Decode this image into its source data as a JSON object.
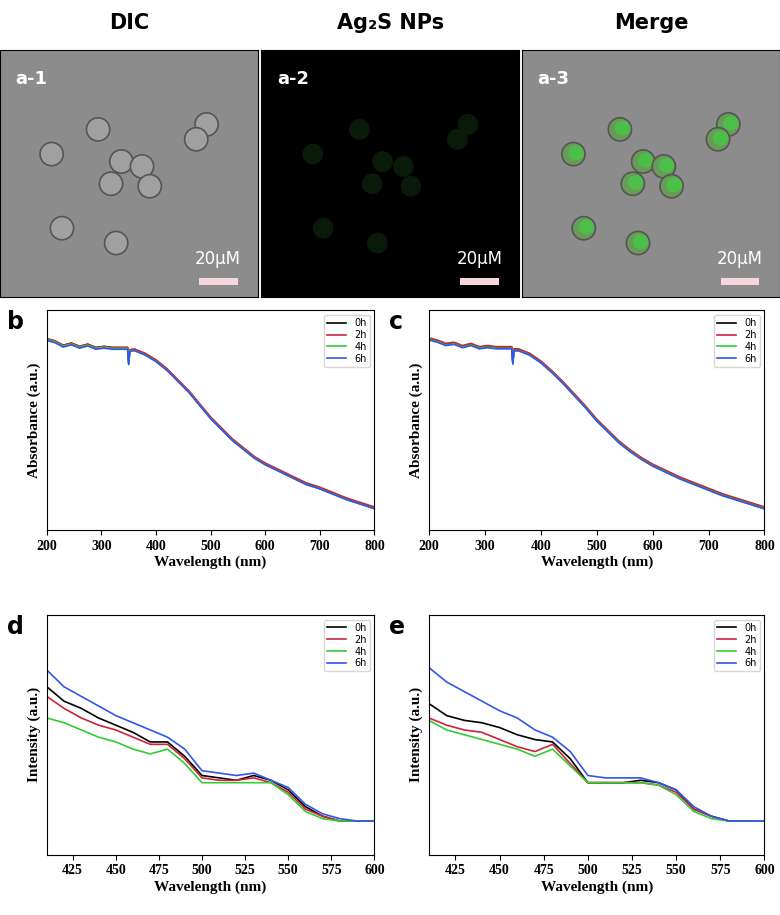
{
  "micrographs": [
    {
      "column_title": "DIC",
      "label": "a-1",
      "scale_bar": "20μM"
    },
    {
      "column_title": "Ag₂S NPs",
      "label": "a-2",
      "scale_bar": "20μM"
    },
    {
      "column_title": "Merge",
      "label": "a-3",
      "scale_bar": "20μM"
    }
  ],
  "chart_data": [
    {
      "type": "line",
      "title": "b",
      "x_label": "Wavelength (nm)",
      "y_label": "Absorbance (a.u.)",
      "x": [
        200,
        215,
        230,
        245,
        260,
        275,
        290,
        305,
        320,
        335,
        348,
        350,
        352,
        360,
        380,
        400,
        420,
        440,
        460,
        480,
        500,
        520,
        540,
        560,
        580,
        600,
        625,
        650,
        675,
        700,
        725,
        750,
        775,
        800
      ],
      "xlim": [
        200,
        800
      ],
      "xticks": [
        200,
        300,
        400,
        500,
        600,
        700,
        800
      ],
      "ylim": [
        0,
        1
      ],
      "yticks": [],
      "tick_labels": "x",
      "legend": "upper right",
      "series": [
        {
          "name": "0h",
          "color": "#000000",
          "values": [
            0.87,
            0.86,
            0.84,
            0.85,
            0.835,
            0.845,
            0.83,
            0.835,
            0.83,
            0.83,
            0.83,
            0.76,
            0.82,
            0.82,
            0.8,
            0.77,
            0.73,
            0.68,
            0.63,
            0.57,
            0.51,
            0.46,
            0.41,
            0.37,
            0.33,
            0.3,
            0.27,
            0.24,
            0.21,
            0.19,
            0.165,
            0.14,
            0.12,
            0.1
          ]
        },
        {
          "name": "2h",
          "color": "#d0213a",
          "values": [
            0.87,
            0.86,
            0.84,
            0.85,
            0.835,
            0.845,
            0.83,
            0.835,
            0.83,
            0.83,
            0.83,
            0.76,
            0.82,
            0.824,
            0.804,
            0.774,
            0.734,
            0.684,
            0.634,
            0.574,
            0.514,
            0.464,
            0.414,
            0.374,
            0.334,
            0.304,
            0.274,
            0.244,
            0.214,
            0.194,
            0.169,
            0.144,
            0.124,
            0.104
          ]
        },
        {
          "name": "4h",
          "color": "#33cc33",
          "values": [
            0.866,
            0.856,
            0.836,
            0.846,
            0.831,
            0.841,
            0.826,
            0.831,
            0.826,
            0.826,
            0.826,
            0.756,
            0.816,
            0.817,
            0.797,
            0.767,
            0.727,
            0.677,
            0.627,
            0.567,
            0.507,
            0.457,
            0.407,
            0.367,
            0.327,
            0.297,
            0.267,
            0.237,
            0.207,
            0.187,
            0.162,
            0.137,
            0.117,
            0.097
          ]
        },
        {
          "name": "6h",
          "color": "#3355ee",
          "values": [
            0.862,
            0.852,
            0.832,
            0.842,
            0.827,
            0.837,
            0.822,
            0.827,
            0.822,
            0.822,
            0.822,
            0.752,
            0.812,
            0.816,
            0.796,
            0.766,
            0.726,
            0.676,
            0.626,
            0.566,
            0.506,
            0.456,
            0.406,
            0.366,
            0.326,
            0.296,
            0.266,
            0.236,
            0.206,
            0.186,
            0.161,
            0.136,
            0.116,
            0.096
          ]
        }
      ]
    },
    {
      "type": "line",
      "title": "c",
      "x_label": "Wavelength (nm)",
      "y_label": "Absorbance (a.u.)",
      "x": [
        200,
        215,
        230,
        245,
        260,
        275,
        290,
        305,
        320,
        335,
        348,
        350,
        352,
        360,
        380,
        400,
        420,
        440,
        460,
        480,
        500,
        520,
        540,
        560,
        580,
        600,
        625,
        650,
        675,
        700,
        725,
        750,
        775,
        800
      ],
      "xlim": [
        200,
        800
      ],
      "xticks": [
        200,
        300,
        400,
        500,
        600,
        700,
        800
      ],
      "ylim": [
        0,
        1
      ],
      "yticks": [],
      "tick_labels": "x",
      "legend": "upper right",
      "series": [
        {
          "name": "0h",
          "color": "#000000",
          "values": [
            0.87,
            0.86,
            0.845,
            0.85,
            0.835,
            0.845,
            0.83,
            0.835,
            0.83,
            0.83,
            0.83,
            0.76,
            0.82,
            0.82,
            0.8,
            0.765,
            0.72,
            0.67,
            0.615,
            0.56,
            0.5,
            0.45,
            0.4,
            0.36,
            0.325,
            0.295,
            0.265,
            0.235,
            0.21,
            0.185,
            0.16,
            0.14,
            0.12,
            0.1
          ]
        },
        {
          "name": "2h",
          "color": "#d0213a",
          "values": [
            0.874,
            0.864,
            0.849,
            0.854,
            0.839,
            0.849,
            0.834,
            0.839,
            0.834,
            0.834,
            0.834,
            0.764,
            0.824,
            0.824,
            0.804,
            0.769,
            0.724,
            0.674,
            0.619,
            0.564,
            0.504,
            0.454,
            0.404,
            0.364,
            0.329,
            0.299,
            0.269,
            0.239,
            0.214,
            0.189,
            0.164,
            0.144,
            0.124,
            0.104
          ]
        },
        {
          "name": "4h",
          "color": "#33cc33",
          "values": [
            0.867,
            0.857,
            0.842,
            0.847,
            0.832,
            0.842,
            0.827,
            0.832,
            0.827,
            0.827,
            0.827,
            0.757,
            0.817,
            0.817,
            0.797,
            0.762,
            0.717,
            0.667,
            0.612,
            0.557,
            0.497,
            0.447,
            0.397,
            0.357,
            0.322,
            0.292,
            0.262,
            0.232,
            0.207,
            0.182,
            0.157,
            0.137,
            0.117,
            0.097
          ]
        },
        {
          "name": "6h",
          "color": "#3355ee",
          "values": [
            0.864,
            0.854,
            0.839,
            0.844,
            0.829,
            0.839,
            0.824,
            0.829,
            0.824,
            0.824,
            0.824,
            0.754,
            0.814,
            0.815,
            0.795,
            0.76,
            0.715,
            0.665,
            0.61,
            0.555,
            0.495,
            0.445,
            0.395,
            0.355,
            0.32,
            0.29,
            0.26,
            0.23,
            0.205,
            0.18,
            0.155,
            0.135,
            0.115,
            0.095
          ]
        }
      ]
    },
    {
      "type": "line",
      "title": "d",
      "x_label": "Wavelength (nm)",
      "y_label": "Intensity (a.u.)",
      "x": [
        410,
        420,
        430,
        440,
        450,
        460,
        470,
        480,
        490,
        500,
        510,
        520,
        530,
        540,
        550,
        560,
        570,
        580,
        590,
        600
      ],
      "xlim": [
        410,
        600
      ],
      "xticks": [
        425,
        450,
        475,
        500,
        525,
        550,
        575,
        600
      ],
      "ylim": [
        0,
        1
      ],
      "yticks": [],
      "tick_labels": "x",
      "legend": "upper right",
      "series": [
        {
          "name": "0h",
          "color": "#000000",
          "values": [
            0.7,
            0.64,
            0.61,
            0.57,
            0.54,
            0.51,
            0.47,
            0.47,
            0.41,
            0.33,
            0.32,
            0.31,
            0.33,
            0.31,
            0.27,
            0.2,
            0.16,
            0.14,
            0.14,
            0.14
          ]
        },
        {
          "name": "2h",
          "color": "#d0213a",
          "values": [
            0.66,
            0.61,
            0.57,
            0.54,
            0.52,
            0.49,
            0.46,
            0.46,
            0.4,
            0.32,
            0.31,
            0.31,
            0.32,
            0.3,
            0.26,
            0.19,
            0.16,
            0.14,
            0.14,
            0.14
          ]
        },
        {
          "name": "4h",
          "color": "#33cc33",
          "values": [
            0.57,
            0.55,
            0.52,
            0.49,
            0.47,
            0.44,
            0.42,
            0.44,
            0.38,
            0.3,
            0.3,
            0.3,
            0.3,
            0.3,
            0.25,
            0.18,
            0.15,
            0.14,
            0.14,
            0.14
          ]
        },
        {
          "name": "6h",
          "color": "#3355ee",
          "values": [
            0.77,
            0.7,
            0.66,
            0.62,
            0.58,
            0.55,
            0.52,
            0.49,
            0.44,
            0.35,
            0.34,
            0.33,
            0.34,
            0.31,
            0.28,
            0.21,
            0.17,
            0.15,
            0.14,
            0.14
          ]
        }
      ]
    },
    {
      "type": "line",
      "title": "e",
      "x_label": "Wavelength (nm)",
      "y_label": "Intensity (a.u.)",
      "x": [
        410,
        420,
        430,
        440,
        450,
        460,
        470,
        480,
        490,
        500,
        510,
        520,
        530,
        540,
        550,
        560,
        570,
        580,
        590,
        600
      ],
      "xlim": [
        410,
        600
      ],
      "xticks": [
        425,
        450,
        475,
        500,
        525,
        550,
        575,
        600
      ],
      "ylim": [
        0,
        1
      ],
      "yticks": [],
      "tick_labels": "x",
      "legend": "upper right",
      "series": [
        {
          "name": "0h",
          "color": "#000000",
          "values": [
            0.63,
            0.58,
            0.56,
            0.55,
            0.53,
            0.5,
            0.48,
            0.47,
            0.4,
            0.3,
            0.3,
            0.3,
            0.31,
            0.3,
            0.27,
            0.19,
            0.16,
            0.14,
            0.14,
            0.14
          ]
        },
        {
          "name": "2h",
          "color": "#d0213a",
          "values": [
            0.57,
            0.54,
            0.52,
            0.51,
            0.48,
            0.45,
            0.43,
            0.46,
            0.38,
            0.3,
            0.3,
            0.3,
            0.3,
            0.29,
            0.26,
            0.19,
            0.16,
            0.14,
            0.14,
            0.14
          ]
        },
        {
          "name": "4h",
          "color": "#33cc33",
          "values": [
            0.56,
            0.52,
            0.5,
            0.48,
            0.46,
            0.44,
            0.41,
            0.44,
            0.37,
            0.3,
            0.3,
            0.3,
            0.3,
            0.29,
            0.25,
            0.18,
            0.15,
            0.14,
            0.14,
            0.14
          ]
        },
        {
          "name": "6h",
          "color": "#3355ee",
          "values": [
            0.78,
            0.72,
            0.68,
            0.64,
            0.6,
            0.57,
            0.52,
            0.49,
            0.43,
            0.33,
            0.32,
            0.32,
            0.32,
            0.3,
            0.27,
            0.2,
            0.16,
            0.14,
            0.14,
            0.14
          ]
        }
      ]
    }
  ]
}
